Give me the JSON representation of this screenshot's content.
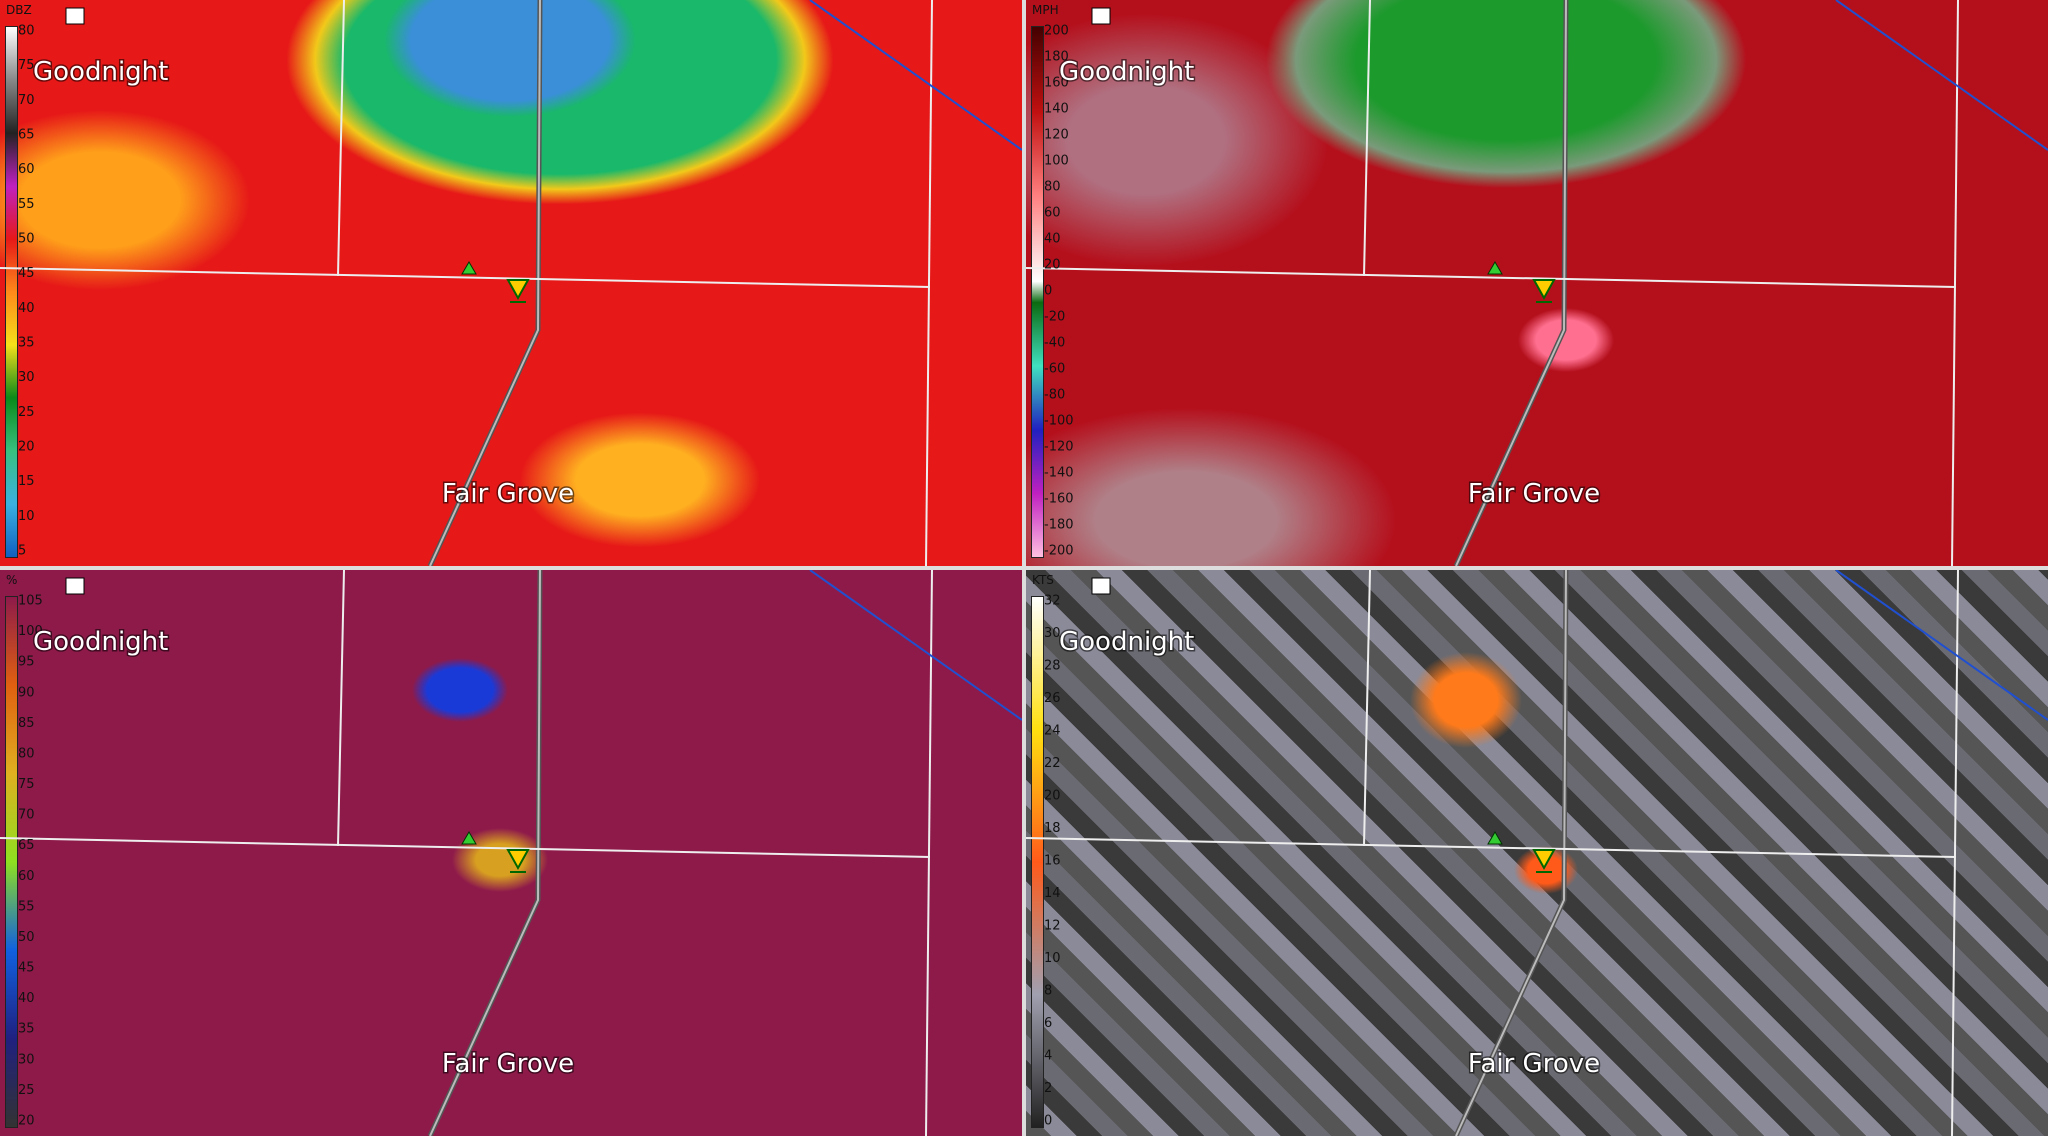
{
  "panels": [
    {
      "unit": "DBZ",
      "scale": [
        80,
        75,
        70,
        65,
        60,
        55,
        50,
        45,
        40,
        35,
        30,
        25,
        20,
        15,
        10,
        5
      ],
      "places": [
        "Goodnight",
        "Fair Grove"
      ]
    },
    {
      "unit": "MPH",
      "scale": [
        200,
        180,
        160,
        140,
        120,
        100,
        80,
        60,
        40,
        20,
        0,
        -20,
        -40,
        -60,
        -80,
        -100,
        -120,
        -140,
        -160,
        -180,
        -200
      ],
      "places": [
        "Goodnight",
        "Fair Grove"
      ]
    },
    {
      "unit": "%",
      "scale": [
        105,
        100,
        95,
        90,
        85,
        80,
        75,
        70,
        65,
        60,
        55,
        50,
        45,
        40,
        35,
        30,
        25,
        20
      ],
      "places": [
        "Goodnight",
        "Fair Grove"
      ]
    },
    {
      "unit": "KTS",
      "scale": [
        32,
        30,
        28,
        26,
        24,
        22,
        20,
        18,
        16,
        14,
        12,
        10,
        8,
        6,
        4,
        2,
        0
      ],
      "places": [
        "Goodnight",
        "Fair Grove"
      ]
    }
  ]
}
